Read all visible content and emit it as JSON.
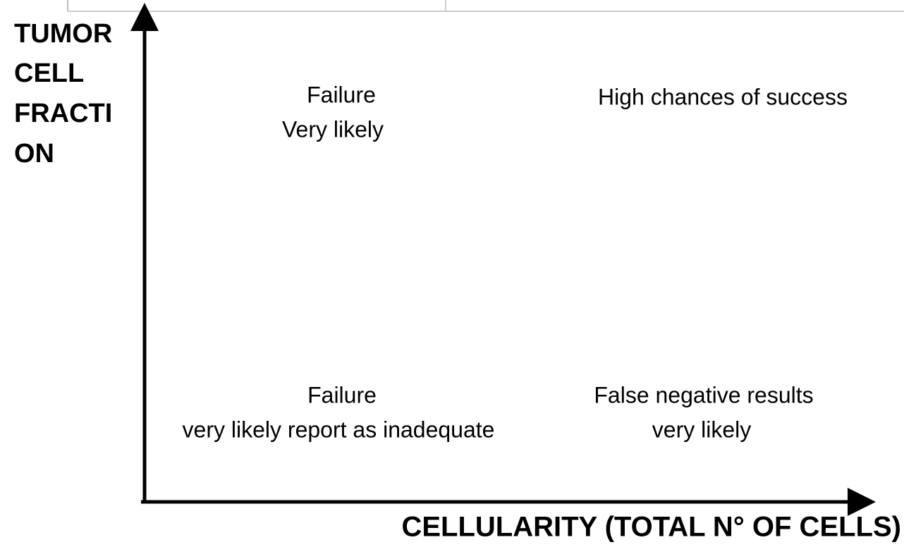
{
  "y_axis_label": [
    "TUMOR",
    "CELL",
    "FRACTI",
    "ON"
  ],
  "x_axis_label": "CELLULARITY (TOTAL N° OF CELLS)",
  "quadrants": {
    "top_left": [
      "Failure",
      "Very likely"
    ],
    "top_right": [
      "High chances of success"
    ],
    "bottom_left": [
      "Failure",
      "very likely report as inadequate"
    ],
    "bottom_right": [
      "False negative results",
      "very likely"
    ]
  }
}
